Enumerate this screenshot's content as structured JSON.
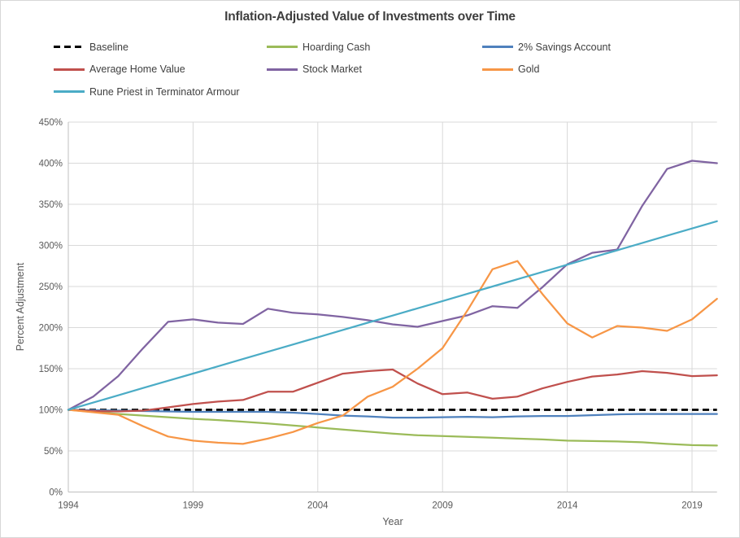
{
  "title": "Inflation-Adjusted Value of Investments over Time",
  "chart_data": {
    "type": "line",
    "xlabel": "Year",
    "ylabel": "Percent Adjustment",
    "ylim": [
      0,
      450
    ],
    "grid": true,
    "legend_position": "top",
    "y_ticks": [
      {
        "value": 0,
        "label": "0%"
      },
      {
        "value": 50,
        "label": "50%"
      },
      {
        "value": 100,
        "label": "100%"
      },
      {
        "value": 150,
        "label": "150%"
      },
      {
        "value": 200,
        "label": "200%"
      },
      {
        "value": 250,
        "label": "250%"
      },
      {
        "value": 300,
        "label": "300%"
      },
      {
        "value": 350,
        "label": "350%"
      },
      {
        "value": 400,
        "label": "400%"
      },
      {
        "value": 450,
        "label": "450%"
      }
    ],
    "x_tick_years": [
      1994,
      1999,
      2004,
      2009,
      2014,
      2019
    ],
    "x": [
      1994,
      1995,
      1996,
      1997,
      1998,
      1999,
      2000,
      2001,
      2002,
      2003,
      2004,
      2005,
      2006,
      2007,
      2008,
      2009,
      2010,
      2011,
      2012,
      2013,
      2014,
      2015,
      2016,
      2017,
      2018,
      2019,
      2020
    ],
    "series": [
      {
        "name": "Baseline",
        "color": "#000000",
        "dashed": true,
        "values": [
          100,
          100,
          100,
          100,
          100,
          100,
          100,
          100,
          100,
          100,
          100,
          100,
          100,
          100,
          100,
          100,
          100,
          100,
          100,
          100,
          100,
          100,
          100,
          100,
          100,
          100,
          100
        ]
      },
      {
        "name": "Hoarding Cash",
        "color": "#9BBB59",
        "dashed": false,
        "values": [
          100,
          97.5,
          95,
          93,
          91,
          89,
          87.5,
          85.5,
          83.5,
          81,
          78.5,
          76,
          73.5,
          71,
          69,
          68,
          67,
          66,
          65,
          64,
          62.5,
          62,
          61.5,
          60.5,
          58.5,
          57,
          56.5
        ]
      },
      {
        "name": "2% Savings Account",
        "color": "#4F81BD",
        "dashed": false,
        "values": [
          100,
          99.5,
          99,
          98.5,
          98,
          97.5,
          97.5,
          97.5,
          97.5,
          96.5,
          95,
          93,
          92,
          90.5,
          90.5,
          91,
          91.5,
          91,
          92,
          92.5,
          92.5,
          93.5,
          94.5,
          95,
          95,
          95,
          95
        ]
      },
      {
        "name": "Average Home Value",
        "color": "#C0504D",
        "dashed": false,
        "values": [
          100,
          98.5,
          98,
          99,
          103,
          107,
          110,
          112,
          122,
          122,
          133,
          144,
          147,
          149,
          132,
          119,
          121,
          113.5,
          116,
          126,
          134,
          140.5,
          143,
          147,
          145,
          141,
          142
        ]
      },
      {
        "name": "Stock Market",
        "color": "#8064A2",
        "dashed": false,
        "values": [
          100,
          116,
          141,
          175,
          207,
          210,
          206,
          204.5,
          223,
          218,
          216,
          213,
          209,
          204,
          201,
          208,
          215,
          226,
          224,
          249,
          277,
          291,
          295,
          348,
          393,
          403,
          400
        ]
      },
      {
        "name": "Gold",
        "color": "#F79646",
        "dashed": false,
        "values": [
          100,
          97,
          94,
          80,
          67.5,
          62.5,
          60,
          58.5,
          65,
          73,
          84,
          93,
          116,
          128,
          150,
          175,
          221,
          271,
          281,
          241,
          205,
          188,
          202,
          200,
          196,
          210,
          235
        ]
      },
      {
        "name": "Rune Priest in Terminator Armour",
        "color": "#4BACC6",
        "dashed": false,
        "values": [
          100,
          108.8,
          117.6,
          126.5,
          135.3,
          144.1,
          152.9,
          161.8,
          170.6,
          179.4,
          188.2,
          197.1,
          205.9,
          214.7,
          223.5,
          232.3,
          241.2,
          250,
          258.8,
          267.6,
          276.5,
          285.3,
          294.1,
          302.9,
          311.8,
          320.6,
          329.4
        ]
      }
    ]
  }
}
